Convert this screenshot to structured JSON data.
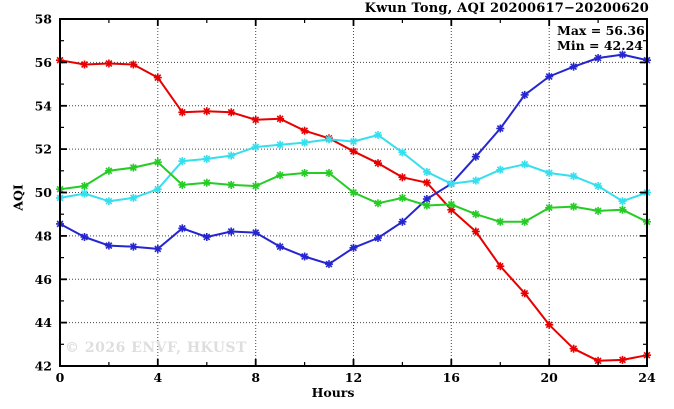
{
  "title": "Kwun Tong, AQI 20200617−20200620",
  "annotation": {
    "max_label": "Max = 56.36",
    "min_label": "Min = 42.24"
  },
  "watermark": "© 2026 ENVF, HKUST",
  "axes": {
    "y_label": "AQI",
    "x_label": "Hours"
  },
  "colors": {
    "red": "#e80000",
    "blue": "#2626d0",
    "cyan": "#35dfee",
    "green": "#25cc25",
    "grid": "#444444",
    "frame": "#000000"
  },
  "chart_data": {
    "type": "line",
    "title": "Kwun Tong, AQI 20200617−20200620",
    "xlabel": "Hours",
    "ylabel": "AQI",
    "xlim": [
      0,
      24
    ],
    "ylim": [
      42,
      58
    ],
    "x_major_ticks": [
      0,
      4,
      8,
      12,
      16,
      20,
      24
    ],
    "x_minor_ticks": [
      2,
      6,
      10,
      14,
      18,
      22
    ],
    "y_major_ticks": [
      42,
      44,
      46,
      48,
      50,
      52,
      54,
      56,
      58
    ],
    "y_minor_ticks": [
      43,
      45,
      47,
      49,
      51,
      53,
      55,
      57
    ],
    "x_grid": [
      4,
      8,
      12,
      16,
      20
    ],
    "y_grid": [
      44,
      46,
      48,
      50,
      52,
      54,
      56
    ],
    "grid": "dotted",
    "legend_position": "none",
    "marker": "asterisk",
    "max_value": 56.36,
    "min_value": 42.24,
    "x": [
      0,
      1,
      2,
      3,
      4,
      5,
      6,
      7,
      8,
      9,
      10,
      11,
      12,
      13,
      14,
      15,
      16,
      17,
      18,
      19,
      20,
      21,
      22,
      23,
      24
    ],
    "series": [
      {
        "name": "series-red",
        "color": "#e80000",
        "values": [
          56.1,
          55.9,
          55.95,
          55.9,
          55.3,
          53.7,
          53.75,
          53.7,
          53.35,
          53.4,
          52.85,
          52.5,
          51.9,
          51.35,
          50.7,
          50.45,
          49.2,
          48.2,
          46.6,
          45.35,
          43.9,
          42.8,
          42.24,
          42.28,
          42.5
        ]
      },
      {
        "name": "series-blue",
        "color": "#2626d0",
        "values": [
          48.55,
          47.95,
          47.55,
          47.5,
          47.4,
          48.35,
          47.95,
          48.2,
          48.15,
          47.5,
          47.05,
          46.7,
          47.45,
          47.9,
          48.65,
          49.7,
          50.4,
          51.65,
          52.95,
          54.5,
          55.35,
          55.8,
          56.2,
          56.36,
          56.1
        ]
      },
      {
        "name": "series-cyan",
        "color": "#35dfee",
        "values": [
          49.75,
          49.95,
          49.6,
          49.75,
          50.15,
          51.45,
          51.55,
          51.7,
          52.1,
          52.2,
          52.3,
          52.45,
          52.35,
          52.65,
          51.85,
          50.95,
          50.4,
          50.55,
          51.05,
          51.3,
          50.9,
          50.75,
          50.3,
          49.6,
          50.0
        ]
      },
      {
        "name": "series-green",
        "color": "#25cc25",
        "values": [
          50.15,
          50.3,
          51.0,
          51.15,
          51.4,
          50.35,
          50.45,
          50.35,
          50.3,
          50.8,
          50.9,
          50.9,
          50.0,
          49.5,
          49.75,
          49.4,
          49.45,
          49.0,
          48.65,
          48.65,
          49.3,
          49.35,
          49.15,
          49.2,
          48.65
        ]
      }
    ]
  }
}
